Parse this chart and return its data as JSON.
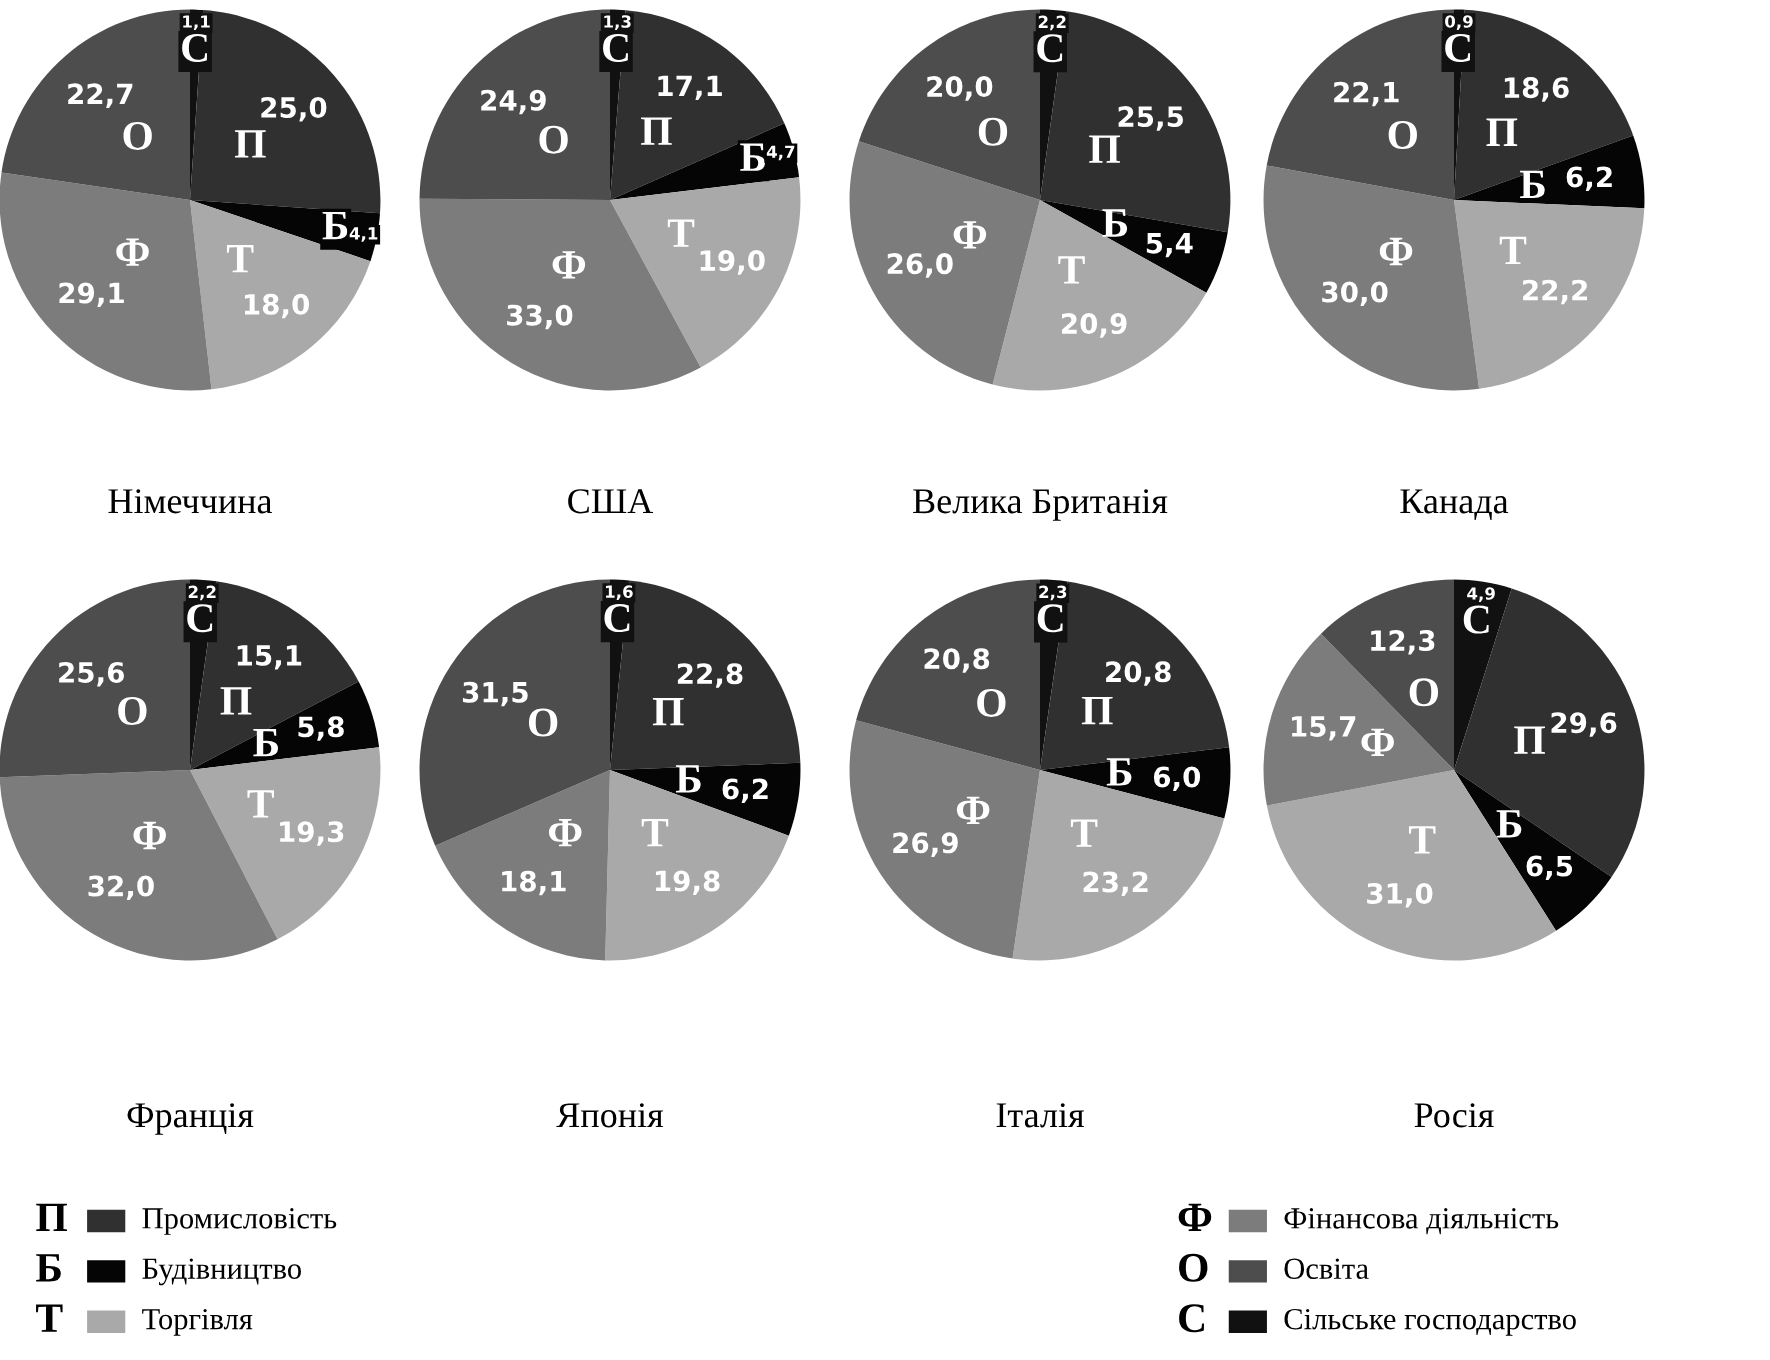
{
  "chart_data": [
    {
      "type": "pie",
      "title": "Німеччина",
      "categories": [
        "С",
        "П",
        "Б",
        "Т",
        "Ф",
        "О"
      ],
      "values": [
        1.1,
        25.0,
        4.1,
        18.0,
        29.1,
        22.7
      ],
      "value_labels": [
        "1,1",
        "25,0",
        "4,1",
        "18,0",
        "29,1",
        "22,7"
      ],
      "colors": [
        "#111111",
        "#303030",
        "#050505",
        "#a9a9a9",
        "#7c7c7c",
        "#4d4d4d"
      ]
    },
    {
      "type": "pie",
      "title": "США",
      "categories": [
        "С",
        "П",
        "Б",
        "Т",
        "Ф",
        "О"
      ],
      "values": [
        1.3,
        17.1,
        4.7,
        19.0,
        33.0,
        24.9
      ],
      "value_labels": [
        "1,3",
        "17,1",
        "4,7",
        "19,0",
        "33,0",
        "24,9"
      ],
      "colors": [
        "#111111",
        "#303030",
        "#050505",
        "#a9a9a9",
        "#7c7c7c",
        "#4d4d4d"
      ]
    },
    {
      "type": "pie",
      "title": "Велика Британія",
      "categories": [
        "С",
        "П",
        "Б",
        "Т",
        "Ф",
        "О"
      ],
      "values": [
        2.2,
        25.5,
        5.4,
        20.9,
        26.0,
        20.0
      ],
      "value_labels": [
        "2,2",
        "25,5",
        "5,4",
        "20,9",
        "26,0",
        "20,0"
      ],
      "colors": [
        "#111111",
        "#303030",
        "#050505",
        "#a9a9a9",
        "#7c7c7c",
        "#4d4d4d"
      ]
    },
    {
      "type": "pie",
      "title": "Канада",
      "categories": [
        "С",
        "П",
        "Б",
        "Т",
        "Ф",
        "О"
      ],
      "values": [
        0.9,
        18.6,
        6.2,
        22.2,
        30.0,
        22.1
      ],
      "value_labels": [
        "0,9",
        "18,6",
        "6,2",
        "22,2",
        "30,0",
        "22,1"
      ],
      "colors": [
        "#111111",
        "#303030",
        "#050505",
        "#a9a9a9",
        "#7c7c7c",
        "#4d4d4d"
      ]
    },
    {
      "type": "pie",
      "title": "Франція",
      "categories": [
        "С",
        "П",
        "Б",
        "Т",
        "Ф",
        "О"
      ],
      "values": [
        2.2,
        15.1,
        5.8,
        19.3,
        32.0,
        25.6
      ],
      "value_labels": [
        "2,2",
        "15,1",
        "5,8",
        "19,3",
        "32,0",
        "25,6"
      ],
      "colors": [
        "#111111",
        "#303030",
        "#050505",
        "#a9a9a9",
        "#7c7c7c",
        "#4d4d4d"
      ]
    },
    {
      "type": "pie",
      "title": "Японія",
      "categories": [
        "С",
        "П",
        "Б",
        "Т",
        "Ф",
        "О"
      ],
      "values": [
        1.6,
        22.8,
        6.2,
        19.8,
        18.1,
        31.5
      ],
      "value_labels": [
        "1,6",
        "22,8",
        "6,2",
        "19,8",
        "18,1",
        "31,5"
      ],
      "colors": [
        "#111111",
        "#303030",
        "#050505",
        "#a9a9a9",
        "#7c7c7c",
        "#4d4d4d"
      ]
    },
    {
      "type": "pie",
      "title": "Італія",
      "categories": [
        "С",
        "П",
        "Б",
        "Т",
        "Ф",
        "О"
      ],
      "values": [
        2.3,
        20.8,
        6.0,
        23.2,
        26.9,
        20.8
      ],
      "value_labels": [
        "2,3",
        "20,8",
        "6,0",
        "23,2",
        "26,9",
        "20,8"
      ],
      "colors": [
        "#111111",
        "#303030",
        "#050505",
        "#a9a9a9",
        "#7c7c7c",
        "#4d4d4d"
      ]
    },
    {
      "type": "pie",
      "title": "Росія",
      "categories": [
        "С",
        "П",
        "Б",
        "Т",
        "Ф",
        "О"
      ],
      "values": [
        4.9,
        29.6,
        6.5,
        31.0,
        15.7,
        12.3
      ],
      "value_labels": [
        "4,9",
        "29,6",
        "6,5",
        "31,0",
        "15,7",
        "12,3"
      ],
      "colors": [
        "#111111",
        "#303030",
        "#050505",
        "#a9a9a9",
        "#7c7c7c",
        "#4d4d4d"
      ]
    },
    {
      "type": "other",
      "categories": [
        "П",
        "Б",
        "Т",
        "Ф",
        "О",
        "С"
      ],
      "annotations": [
        "Промисловість",
        "Будівництво",
        "Торгівля",
        "Фінансова діяльність",
        "Освіта",
        "Сільське господарство"
      ],
      "colors": [
        "#303030",
        "#050505",
        "#a9a9a9",
        "#7c7c7c",
        "#4d4d4d",
        "#111111"
      ]
    }
  ]
}
